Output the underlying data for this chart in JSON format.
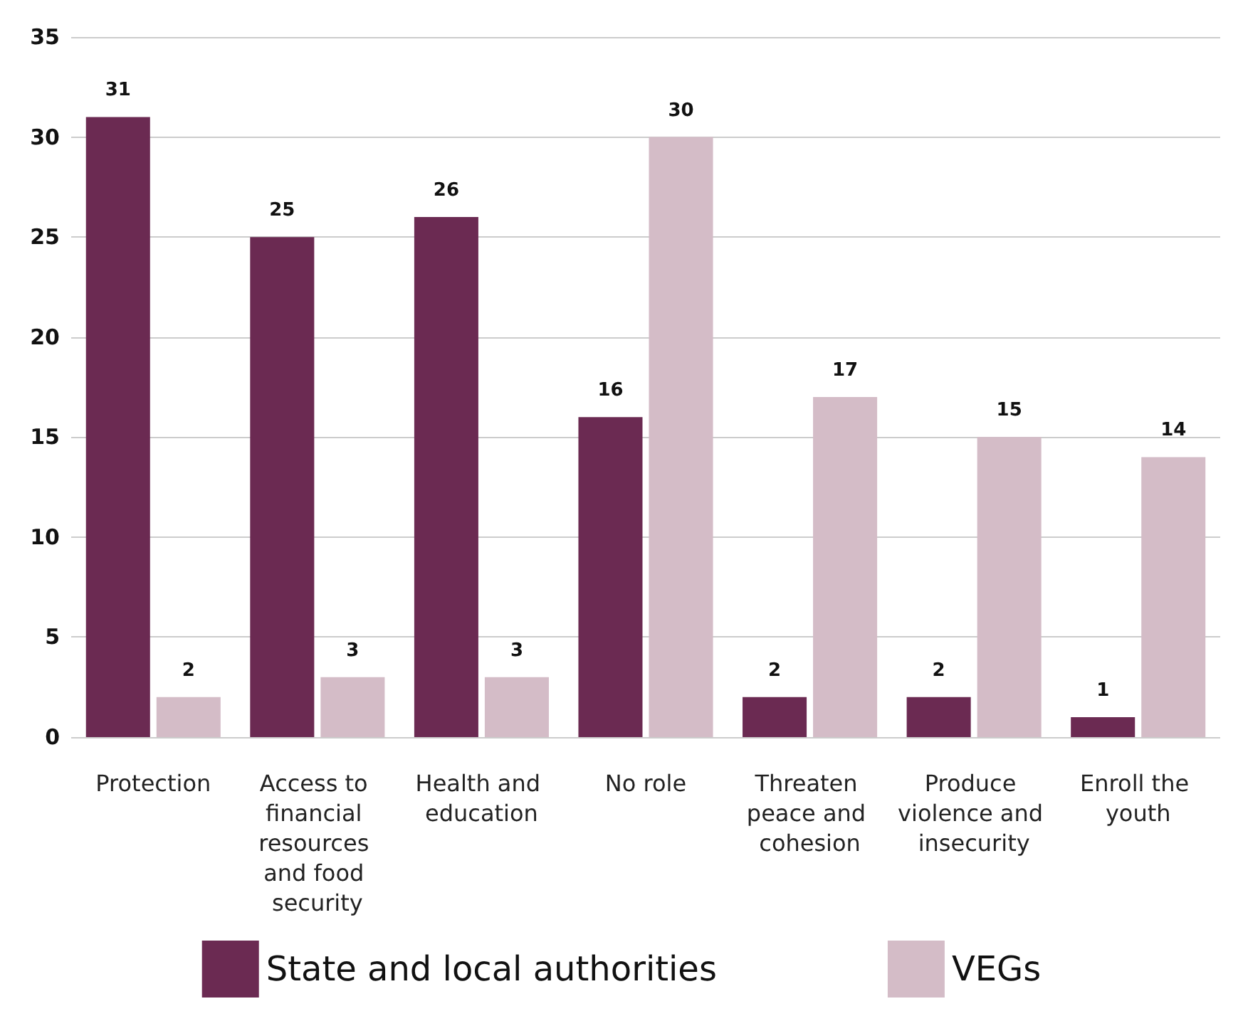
{
  "chart_data": {
    "type": "bar",
    "categories": [
      "Protection",
      "Access to financial resources and food security",
      "Health and education",
      "No role",
      "Threaten peace and cohesion",
      "Produce violence and insecurity",
      "Enroll the youth"
    ],
    "series": [
      {
        "name": "State and local authorities",
        "color": "#6b2a52",
        "values": [
          31,
          25,
          26,
          16,
          2,
          2,
          1
        ]
      },
      {
        "name": "VEGs",
        "color": "#d4bcc7",
        "values": [
          2,
          3,
          3,
          30,
          17,
          15,
          14
        ]
      }
    ],
    "ylim": [
      0,
      35
    ],
    "yticks": [
      0,
      5,
      10,
      15,
      20,
      25,
      30,
      35
    ],
    "grid": "y",
    "legend": "bottom",
    "data_labels": true
  }
}
